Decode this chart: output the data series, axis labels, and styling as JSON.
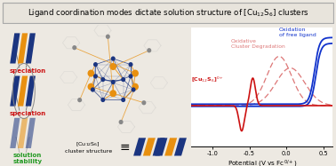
{
  "title": "Ligand coordination modes dictate solution structure of [Cu$_{12}$S$_6$] clusters",
  "title_fontsize": 6.2,
  "bg_color": "#ede9e2",
  "border_color": "#aaaaaa",
  "blue_color": "#1b3580",
  "orange_color": "#e89010",
  "gray_color": "#888888",
  "red_color": "#cc1111",
  "dashed_red_color": "#dd7777",
  "blue_cv_color": "#1133cc",
  "green_color": "#229922",
  "xlabel": "Potential (V vs Fc$^{0/+}$)",
  "xlim": [
    -1.28,
    0.62
  ],
  "ylim": [
    -0.55,
    1.1
  ],
  "xlabel_fontsize": 5.2,
  "tick_fontsize": 4.8,
  "xticks": [
    -1.0,
    -0.5,
    0.0,
    0.5
  ],
  "xtick_labels": [
    "-1.0",
    "-0.5",
    "0.0",
    "0.5"
  ]
}
